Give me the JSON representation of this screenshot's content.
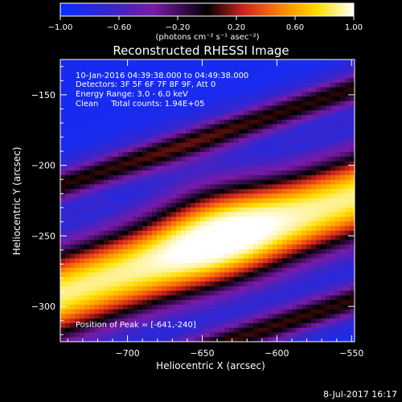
{
  "colorbar": {
    "ticks": [
      "-1.00",
      "-0.60",
      "-0.20",
      "0.20",
      "0.60",
      "1.00"
    ],
    "range": [
      -1.0,
      1.0
    ],
    "unit_label": "(photons cm⁻² s⁻¹ asec⁻²)"
  },
  "chart_data": {
    "type": "heatmap",
    "title": "Reconstructed RHESSI Image",
    "xlabel": "Heliocentric X (arcsec)",
    "ylabel": "Heliocentric Y (arcsec)",
    "xlim": [
      -745,
      -548
    ],
    "ylim": [
      -325,
      -125
    ],
    "xticks": [
      -700,
      -650,
      -600,
      -550
    ],
    "yticks": [
      -150,
      -200,
      -250,
      -300
    ],
    "annotations": [
      "10-Jan-2016 04:39:38.000 to 04:49:38.000",
      "Detectors: 3F 5F 6F 7F 8F 9F, Att 0",
      "Energy Range: 3.0 - 6.0 keV",
      "Clean     Total counts: 1.94E+05"
    ],
    "peak_label": "Position of Peak = [-641,-240]",
    "peak": [
      -641,
      -240
    ],
    "colormap": "blue-purple-black-red-yellow-white",
    "band_slope_arcsec_per_arcsec": 0.35,
    "bands": [
      {
        "offset_arcsec": -15,
        "sigma_arcsec": 24,
        "amplitude": 1.0
      },
      {
        "offset_arcsec": -88,
        "sigma_arcsec": 9,
        "amplitude": 0.55
      },
      {
        "offset_arcsec": 62,
        "sigma_arcsec": 9,
        "amplitude": 0.55
      }
    ]
  },
  "footer": {
    "date": "8-Jul-2017 16:17"
  }
}
